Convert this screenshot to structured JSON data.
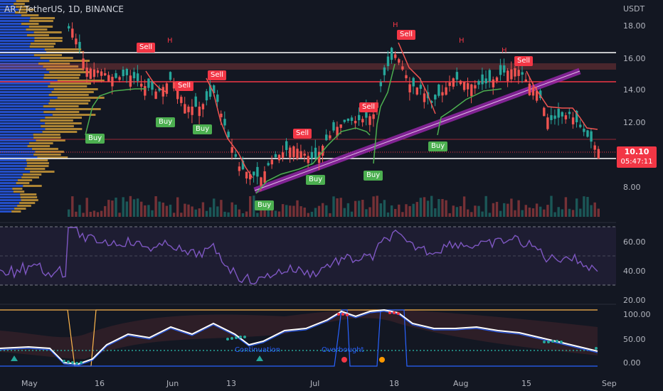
{
  "header": {
    "symbol_title": "AR / TetherUS, 1D, BINANCE"
  },
  "price_scale": {
    "currency": "USDT",
    "ticks": [
      "18.00",
      "16.00",
      "14.00",
      "12.00",
      "10.00",
      "8.00"
    ]
  },
  "current_price": {
    "value": "10.10",
    "countdown": "05:47:11"
  },
  "rsi_scale": {
    "ticks": [
      "60.00",
      "40.00",
      "20.00"
    ]
  },
  "osc_scale": {
    "ticks": [
      "100.00",
      "50.00",
      "0.00"
    ]
  },
  "time_axis": {
    "labels": [
      "May",
      "16",
      "Jun",
      "13",
      "Jul",
      "18",
      "Aug",
      "15",
      "Sep"
    ]
  },
  "signals": {
    "sell": [
      "Sell",
      "Sell",
      "Sell",
      "Sell",
      "Sell",
      "Sell",
      "Sell"
    ],
    "buy": [
      "Buy",
      "Buy",
      "Buy",
      "Buy",
      "Buy",
      "Buy",
      "Buy"
    ],
    "h_marks": [
      "H",
      "H",
      "H",
      "H"
    ]
  },
  "oscillator_labels": {
    "continuation": "Continuation",
    "overbought": "Overbought"
  },
  "colors": {
    "background": "#131722",
    "bull": "#26a69a",
    "bear": "#ef5350",
    "channel": "#9c27b0",
    "rsi": "#7e57c2",
    "osc_blue": "#2962ff"
  }
}
